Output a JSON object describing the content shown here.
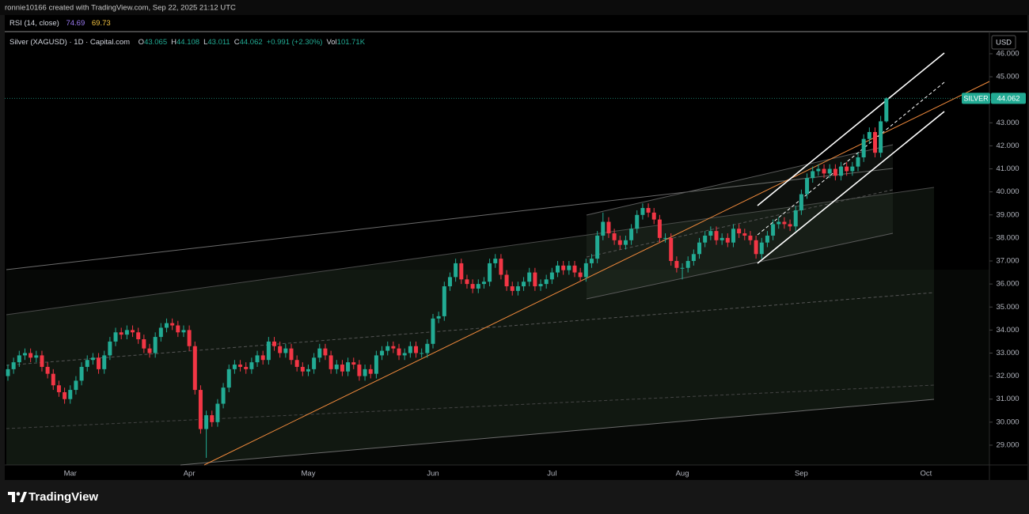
{
  "header": {
    "author_line": "ronnie10166 created with TradingView.com, Sep 22, 2025 21:12 UTC"
  },
  "rsi": {
    "title": "RSI (14, close)",
    "values": [
      74.69,
      69.73
    ]
  },
  "chart_data": {
    "type": "candlestick",
    "title": "Silver (XAGUSD) · 1D · Capital.com",
    "legend": [
      {
        "key": "O",
        "value": 43.065
      },
      {
        "key": "H",
        "value": 44.108
      },
      {
        "key": "L",
        "value": 43.011
      },
      {
        "key": "C",
        "value": 44.062
      }
    ],
    "change": "+0.991 (+2.30%)",
    "volume": {
      "key": "Vol",
      "value": "101.71K"
    },
    "currency": "USD",
    "categories": [
      null,
      null,
      null,
      null,
      null,
      null,
      null,
      null,
      null,
      null,
      null,
      "Mar",
      null,
      null,
      null,
      null,
      null,
      null,
      null,
      null,
      null,
      null,
      null,
      null,
      null,
      null,
      null,
      null,
      null,
      null,
      null,
      null,
      "Apr",
      null,
      null,
      null,
      null,
      null,
      null,
      null,
      null,
      null,
      null,
      null,
      null,
      null,
      null,
      null,
      null,
      null,
      null,
      null,
      null,
      "May",
      null,
      null,
      null,
      null,
      null,
      null,
      null,
      null,
      null,
      null,
      null,
      null,
      null,
      null,
      null,
      null,
      null,
      null,
      null,
      null,
      null,
      "Jun",
      null,
      null,
      null,
      null,
      null,
      null,
      null,
      null,
      null,
      null,
      null,
      null,
      null,
      null,
      null,
      null,
      null,
      null,
      null,
      null,
      "Jul",
      null,
      null,
      null,
      null,
      null,
      null,
      null,
      null,
      null,
      null,
      null,
      null,
      null,
      null,
      null,
      null,
      null,
      null,
      null,
      null,
      null,
      null,
      "Aug",
      null,
      null,
      null,
      null,
      null,
      null,
      null,
      null,
      null,
      null,
      null,
      null,
      null,
      null,
      null,
      null,
      null,
      null,
      null,
      null,
      "Sep",
      null,
      null,
      null,
      null,
      null,
      null,
      null,
      null,
      null,
      null,
      null,
      null,
      null,
      null,
      null,
      null,
      null,
      null,
      null,
      null,
      null,
      "Oct"
    ],
    "open": [
      32.0,
      32.3,
      32.6,
      32.9,
      33.0,
      32.8,
      32.9,
      32.4,
      32.1,
      31.6,
      31.3,
      31.0,
      31.4,
      31.8,
      32.4,
      32.7,
      32.8,
      32.3,
      32.9,
      33.5,
      33.9,
      33.8,
      34.0,
      33.9,
      33.6,
      33.2,
      33.0,
      33.7,
      34.1,
      34.3,
      34.2,
      33.9,
      34.0,
      33.3,
      31.4,
      29.7,
      30.3,
      30.0,
      30.8,
      31.5,
      32.3,
      32.5,
      32.4,
      32.3,
      32.6,
      32.9,
      32.7,
      33.5,
      33.3,
      33.0,
      33.2,
      32.7,
      32.4,
      32.2,
      32.3,
      32.8,
      33.2,
      32.9,
      32.3,
      32.5,
      32.2,
      32.6,
      32.5,
      32.0,
      32.3,
      32.1,
      32.9,
      33.1,
      33.3,
      33.2,
      32.9,
      33.0,
      33.3,
      33.0,
      33.0,
      33.4,
      34.5,
      34.6,
      35.9,
      36.3,
      36.9,
      36.2,
      36.0,
      35.8,
      36.0,
      36.1,
      36.9,
      37.1,
      36.4,
      35.9,
      35.7,
      35.9,
      36.1,
      36.5,
      35.9,
      36.0,
      36.2,
      36.5,
      36.8,
      36.6,
      36.8,
      36.5,
      36.3,
      36.9,
      37.1,
      38.1,
      38.7,
      38.2,
      37.9,
      37.7,
      37.9,
      38.4,
      39.0,
      39.3,
      39.1,
      38.8,
      38.0,
      38.0,
      37.0,
      36.7,
      36.7,
      37.0,
      37.3,
      37.8,
      38.1,
      38.3,
      37.9,
      38.0,
      37.8,
      38.4,
      38.2,
      38.1,
      37.9,
      37.3,
      37.8,
      38.1,
      38.6,
      38.7,
      38.6,
      38.5,
      39.2,
      39.9,
      40.6,
      40.9,
      41.0,
      40.8,
      41.0,
      40.7,
      41.1,
      40.9,
      41.1,
      41.5,
      42.3,
      42.6,
      41.7,
      43.065,
      null,
      null,
      null,
      null,
      null,
      null,
      null
    ],
    "high": [
      32.5,
      32.8,
      33.1,
      33.2,
      33.2,
      33.1,
      33.1,
      32.6,
      32.3,
      31.8,
      31.5,
      31.6,
      32.0,
      32.6,
      32.9,
      33.0,
      33.0,
      33.1,
      33.7,
      34.1,
      34.1,
      34.2,
      34.2,
      34.1,
      33.8,
      33.4,
      33.9,
      34.3,
      34.5,
      34.5,
      34.4,
      34.2,
      34.2,
      33.5,
      31.6,
      30.5,
      30.5,
      31.0,
      31.7,
      32.5,
      32.7,
      32.7,
      32.6,
      32.8,
      33.1,
      33.1,
      33.7,
      33.7,
      33.5,
      33.4,
      33.4,
      32.9,
      32.6,
      32.5,
      33.0,
      33.4,
      33.4,
      33.1,
      32.7,
      32.7,
      32.8,
      32.8,
      32.7,
      32.5,
      32.5,
      33.1,
      33.3,
      33.5,
      33.5,
      33.4,
      33.2,
      33.5,
      33.5,
      33.2,
      33.6,
      34.7,
      34.8,
      36.1,
      36.5,
      37.1,
      37.1,
      36.4,
      36.2,
      36.2,
      36.3,
      37.1,
      37.3,
      37.3,
      36.6,
      36.1,
      36.1,
      36.3,
      36.7,
      36.7,
      36.2,
      36.4,
      36.7,
      37.0,
      37.0,
      37.0,
      37.0,
      36.7,
      37.1,
      37.3,
      38.3,
      39.1,
      38.9,
      38.4,
      38.1,
      38.1,
      38.6,
      39.2,
      39.5,
      39.5,
      39.3,
      39.0,
      38.2,
      38.2,
      37.2,
      36.9,
      37.2,
      37.5,
      38.0,
      38.3,
      38.5,
      38.5,
      38.2,
      38.2,
      38.6,
      38.6,
      38.4,
      38.3,
      38.1,
      38.0,
      38.3,
      38.8,
      38.9,
      38.9,
      38.8,
      39.4,
      40.1,
      40.8,
      41.1,
      41.2,
      41.2,
      41.2,
      41.2,
      41.3,
      41.3,
      41.3,
      41.7,
      42.5,
      42.8,
      42.8,
      43.3,
      44.108,
      null,
      null,
      null,
      null,
      null,
      null,
      null
    ],
    "low": [
      31.8,
      32.1,
      32.4,
      32.7,
      32.6,
      32.6,
      32.2,
      31.9,
      31.4,
      31.1,
      30.8,
      30.8,
      31.2,
      31.6,
      32.2,
      32.5,
      32.1,
      32.1,
      32.7,
      33.3,
      33.6,
      33.6,
      33.7,
      33.4,
      33.0,
      32.8,
      32.8,
      33.5,
      33.9,
      34.0,
      33.7,
      33.7,
      33.1,
      31.2,
      29.5,
      28.45,
      29.8,
      29.8,
      30.6,
      31.3,
      32.1,
      32.2,
      32.1,
      32.1,
      32.4,
      32.5,
      32.5,
      33.1,
      32.8,
      32.8,
      32.5,
      32.2,
      32.0,
      32.0,
      32.1,
      32.6,
      32.7,
      32.1,
      32.1,
      32.0,
      32.0,
      32.3,
      31.8,
      31.8,
      31.9,
      31.9,
      32.7,
      32.9,
      33.0,
      32.7,
      32.7,
      32.8,
      32.8,
      32.8,
      32.8,
      33.2,
      34.3,
      34.4,
      35.7,
      36.1,
      36.0,
      35.8,
      35.6,
      35.6,
      35.8,
      35.9,
      36.7,
      36.2,
      35.7,
      35.5,
      35.5,
      35.7,
      35.9,
      35.7,
      35.7,
      35.8,
      36.0,
      36.3,
      36.4,
      36.4,
      36.3,
      36.1,
      36.1,
      36.7,
      36.9,
      37.9,
      38.0,
      37.7,
      37.5,
      37.5,
      37.7,
      38.2,
      38.8,
      38.9,
      38.6,
      37.8,
      37.8,
      36.8,
      36.5,
      36.2,
      36.5,
      36.8,
      37.1,
      37.6,
      37.9,
      37.7,
      37.7,
      37.6,
      37.6,
      38.0,
      37.9,
      37.7,
      37.1,
      37.1,
      37.6,
      37.9,
      38.4,
      38.4,
      38.3,
      38.3,
      39.0,
      39.7,
      40.4,
      40.7,
      40.6,
      40.6,
      40.5,
      40.5,
      40.7,
      40.7,
      40.9,
      41.3,
      42.1,
      41.5,
      41.5,
      43.011,
      null,
      null,
      null,
      null,
      null,
      null,
      null
    ],
    "close": [
      32.3,
      32.6,
      32.9,
      33.0,
      32.8,
      32.9,
      32.4,
      32.1,
      31.6,
      31.3,
      31.0,
      31.4,
      31.8,
      32.4,
      32.7,
      32.8,
      32.3,
      32.9,
      33.5,
      33.9,
      33.8,
      34.0,
      33.9,
      33.6,
      33.2,
      33.0,
      33.7,
      34.1,
      34.3,
      34.2,
      33.9,
      34.0,
      33.3,
      31.4,
      29.7,
      30.3,
      30.0,
      30.8,
      31.5,
      32.3,
      32.5,
      32.4,
      32.3,
      32.6,
      32.9,
      32.7,
      33.5,
      33.3,
      33.0,
      33.2,
      32.7,
      32.4,
      32.2,
      32.3,
      32.8,
      33.2,
      32.9,
      32.3,
      32.5,
      32.2,
      32.6,
      32.5,
      32.0,
      32.3,
      32.1,
      32.9,
      33.1,
      33.3,
      33.2,
      32.9,
      33.0,
      33.3,
      33.0,
      33.0,
      33.4,
      34.5,
      34.6,
      35.9,
      36.3,
      36.9,
      36.2,
      36.0,
      35.8,
      36.0,
      36.1,
      36.9,
      37.1,
      36.4,
      35.9,
      35.7,
      35.9,
      36.1,
      36.5,
      35.9,
      36.0,
      36.2,
      36.5,
      36.8,
      36.6,
      36.8,
      36.5,
      36.3,
      36.9,
      37.1,
      38.1,
      38.7,
      38.2,
      37.9,
      37.7,
      37.9,
      38.4,
      39.0,
      39.3,
      39.1,
      38.8,
      38.0,
      38.0,
      37.0,
      36.7,
      36.7,
      37.0,
      37.3,
      37.8,
      38.1,
      38.3,
      37.9,
      38.0,
      37.8,
      38.4,
      38.2,
      38.1,
      37.9,
      37.3,
      37.8,
      38.1,
      38.6,
      38.7,
      38.6,
      38.5,
      39.2,
      39.9,
      40.6,
      40.9,
      41.0,
      40.8,
      41.0,
      40.7,
      41.1,
      40.9,
      41.1,
      41.5,
      42.3,
      42.6,
      41.7,
      43.065,
      44.062,
      null,
      null,
      null,
      null,
      null,
      null,
      null
    ],
    "up_color": "#22ab94",
    "down_color": "#f23645",
    "ylim": [
      28.14,
      46.96
    ],
    "yticks": [
      {
        "value": 29,
        "label": "29.000"
      },
      {
        "value": 30,
        "label": "30.000"
      },
      {
        "value": 31,
        "label": "31.000"
      },
      {
        "value": 32,
        "label": "32.000"
      },
      {
        "value": 33,
        "label": "33.000"
      },
      {
        "value": 34,
        "label": "34.000"
      },
      {
        "value": 35,
        "label": "35.000"
      },
      {
        "value": 36,
        "label": "36.000"
      },
      {
        "value": 37,
        "label": "37.000"
      },
      {
        "value": 38,
        "label": "38.000"
      },
      {
        "value": 39,
        "label": "39.000"
      },
      {
        "value": 40,
        "label": "40.000"
      },
      {
        "value": 41,
        "label": "41.000"
      },
      {
        "value": 42,
        "label": "42.000"
      },
      {
        "value": 43,
        "label": "43.000"
      },
      {
        "value": 44,
        "label": "44.000"
      },
      {
        "value": 45,
        "label": "45.000"
      },
      {
        "value": 46,
        "label": "46.000"
      }
    ],
    "last_price_tag": {
      "name": "SILVER",
      "label": "44.062"
    }
  },
  "footer": {
    "brand": "TradingView"
  }
}
